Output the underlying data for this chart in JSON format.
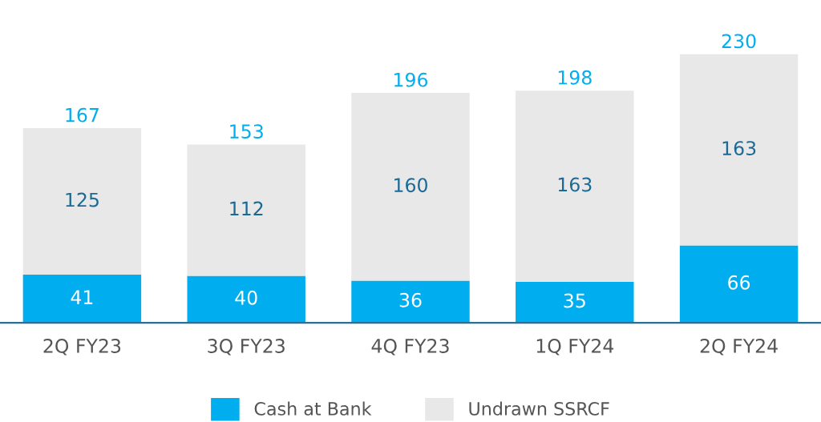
{
  "chart_data": {
    "type": "bar",
    "stacked": true,
    "categories": [
      "2Q FY23",
      "3Q FY23",
      "4Q FY23",
      "1Q FY24",
      "2Q FY24"
    ],
    "series": [
      {
        "name": "Cash at Bank",
        "color": "#00aeef",
        "values": [
          41,
          40,
          36,
          35,
          66
        ]
      },
      {
        "name": "Undrawn SSRCF",
        "color": "#e8e8e8",
        "values": [
          125,
          112,
          160,
          163,
          163
        ]
      }
    ],
    "data_labels": true,
    "totals": [
      "167",
      "153",
      "196",
      "198",
      "230"
    ],
    "legend": "bottom",
    "grid": false
  }
}
